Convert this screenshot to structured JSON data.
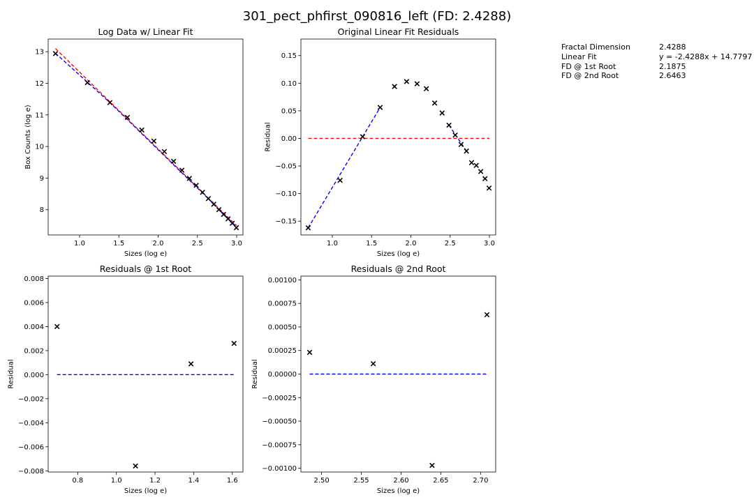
{
  "figure_title": "301_pect_phfirst_090816_left (FD: 2.4288)",
  "info_table": [
    {
      "key": "Fractal Dimension",
      "value": "2.4288"
    },
    {
      "key": "Linear Fit",
      "value": "y = -2.4288x + 14.7797"
    },
    {
      "key": "FD @ 1st Root",
      "value": "2.1875"
    },
    {
      "key": "FD @ 2nd Root",
      "value": "2.6463"
    }
  ],
  "chart_data": [
    {
      "type": "scatter",
      "title": "Log Data w/ Linear Fit",
      "xlabel": "Sizes (log e)",
      "ylabel": "Box Counts (log e)",
      "xlim": [
        0.6,
        3.08
      ],
      "ylim": [
        7.2,
        13.4
      ],
      "xticks": [
        1.0,
        1.5,
        2.0,
        2.5,
        3.0
      ],
      "yticks": [
        8,
        9,
        10,
        11,
        12,
        13
      ],
      "xtick_labels": [
        "1.0",
        "1.5",
        "2.0",
        "2.5",
        "3.0"
      ],
      "ytick_labels": [
        "8",
        "9",
        "10",
        "11",
        "12",
        "13"
      ],
      "points": {
        "x": [
          0.693,
          1.099,
          1.386,
          1.609,
          1.792,
          1.946,
          2.079,
          2.197,
          2.303,
          2.398,
          2.485,
          2.565,
          2.639,
          2.708,
          2.773,
          2.833,
          2.89,
          2.944,
          2.996
        ],
        "y": [
          12.94,
          12.02,
          11.39,
          10.92,
          10.52,
          10.17,
          9.84,
          9.53,
          9.25,
          8.99,
          8.77,
          8.55,
          8.35,
          8.17,
          8.0,
          7.85,
          7.71,
          7.57,
          7.43
        ],
        "marker": "x",
        "color": "#000000"
      },
      "lines": [
        {
          "x": [
            0.693,
            3.0
          ],
          "y": [
            13.1,
            7.49
          ],
          "style": "dashed",
          "color": "#ff0000"
        },
        {
          "x": [
            0.693,
            1.386,
            2.639,
            3.0
          ],
          "y": [
            12.95,
            11.39,
            8.35,
            7.45
          ],
          "style": "dashed",
          "color": "#0000ff"
        }
      ]
    },
    {
      "type": "scatter",
      "title": "Original Linear Fit Residuals",
      "xlabel": "Sizes (log e)",
      "ylabel": "Residual",
      "xlim": [
        0.6,
        3.08
      ],
      "ylim": [
        -0.175,
        0.18
      ],
      "xticks": [
        1.0,
        1.5,
        2.0,
        2.5,
        3.0
      ],
      "yticks": [
        -0.15,
        -0.1,
        -0.05,
        0.0,
        0.05,
        0.1,
        0.15
      ],
      "xtick_labels": [
        "1.0",
        "1.5",
        "2.0",
        "2.5",
        "3.0"
      ],
      "ytick_labels": [
        "−0.15",
        "−0.10",
        "−0.05",
        "0.00",
        "0.05",
        "0.10",
        "0.15"
      ],
      "points": {
        "x": [
          0.693,
          1.099,
          1.386,
          1.609,
          1.792,
          1.946,
          2.079,
          2.197,
          2.303,
          2.398,
          2.485,
          2.565,
          2.639,
          2.708,
          2.773,
          2.833,
          2.89,
          2.944,
          2.996
        ],
        "y": [
          -0.162,
          -0.076,
          0.003,
          0.056,
          0.094,
          0.103,
          0.099,
          0.09,
          0.064,
          0.046,
          0.024,
          0.006,
          -0.011,
          -0.023,
          -0.044,
          -0.049,
          -0.06,
          -0.073,
          -0.09
        ],
        "marker": "x",
        "color": "#000000"
      },
      "lines": [
        {
          "x": [
            0.693,
            3.0
          ],
          "y": [
            0.0,
            0.0
          ],
          "style": "dashed",
          "color": "#ff0000"
        },
        {
          "x": [
            0.693,
            1.609
          ],
          "y": [
            -0.162,
            0.056
          ],
          "style": "dashed",
          "color": "#0000ff"
        },
        {
          "x": [
            2.485,
            2.708
          ],
          "y": [
            0.024,
            -0.023
          ],
          "style": "dashed",
          "color": "#0000ff"
        }
      ]
    },
    {
      "type": "scatter",
      "title": "Residuals @ 1st Root",
      "xlabel": "Sizes (log e)",
      "ylabel": "Residual",
      "xlim": [
        0.647,
        1.655
      ],
      "ylim": [
        -0.0081,
        0.0082
      ],
      "xticks": [
        0.8,
        1.0,
        1.2,
        1.4,
        1.6
      ],
      "yticks": [
        -0.008,
        -0.006,
        -0.004,
        -0.002,
        0.0,
        0.002,
        0.004,
        0.006,
        0.008
      ],
      "xtick_labels": [
        "0.8",
        "1.0",
        "1.2",
        "1.4",
        "1.6"
      ],
      "ytick_labels": [
        "−0.008",
        "−0.006",
        "−0.004",
        "−0.002",
        "0.000",
        "0.002",
        "0.004",
        "0.006",
        "0.008"
      ],
      "points": {
        "x": [
          0.693,
          1.099,
          1.386,
          1.609
        ],
        "y": [
          0.004,
          -0.0076,
          0.0009,
          0.0026
        ],
        "marker": "x",
        "color": "#000000"
      },
      "lines": [
        {
          "x": [
            0.693,
            1.609
          ],
          "y": [
            0.0,
            0.0
          ],
          "style": "dashed",
          "color": "#0000ff"
        }
      ]
    },
    {
      "type": "scatter",
      "title": "Residuals @ 2nd Root",
      "xlabel": "Sizes (log e)",
      "ylabel": "Residual",
      "xlim": [
        2.474,
        2.719
      ],
      "ylim": [
        -0.00104,
        0.00104
      ],
      "xticks": [
        2.5,
        2.55,
        2.6,
        2.65,
        2.7
      ],
      "yticks": [
        -0.001,
        -0.00075,
        -0.0005,
        -0.00025,
        0.0,
        0.00025,
        0.0005,
        0.00075,
        0.001
      ],
      "xtick_labels": [
        "2.50",
        "2.55",
        "2.60",
        "2.65",
        "2.70"
      ],
      "ytick_labels": [
        "−0.00100",
        "−0.00075",
        "−0.00050",
        "−0.00025",
        "0.00000",
        "0.00025",
        "0.00050",
        "0.00075",
        "0.00100"
      ],
      "points": {
        "x": [
          2.485,
          2.565,
          2.639,
          2.708
        ],
        "y": [
          0.00023,
          0.00011,
          -0.00097,
          0.00063
        ],
        "marker": "x",
        "color": "#000000"
      },
      "lines": [
        {
          "x": [
            2.485,
            2.708
          ],
          "y": [
            0.0,
            0.0
          ],
          "style": "dashed",
          "color": "#0000ff"
        }
      ]
    }
  ]
}
